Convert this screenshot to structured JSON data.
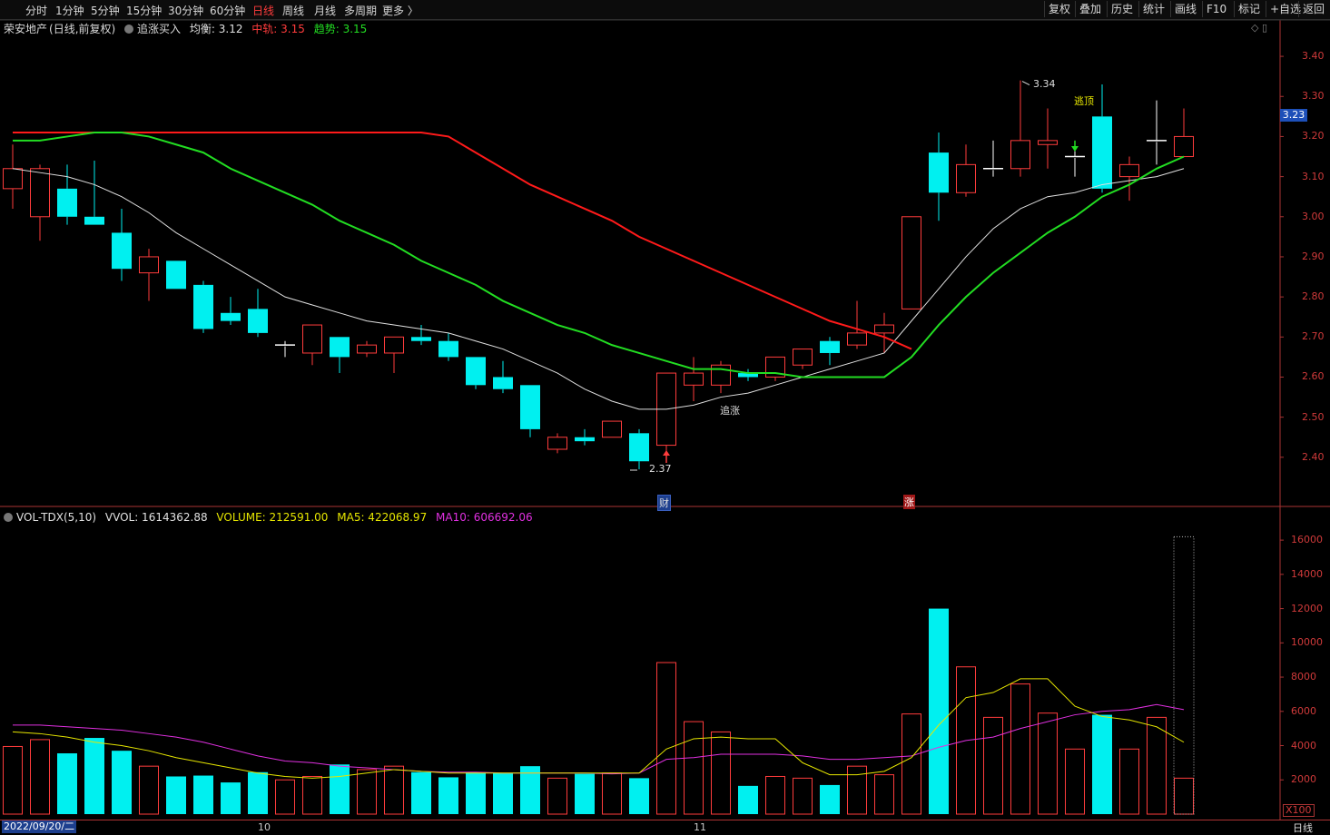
{
  "toolbar": {
    "left_items": [
      "分时",
      "1分钟",
      "5分钟",
      "15分钟",
      "30分钟",
      "60分钟",
      "日线",
      "周线",
      "月线",
      "多周期",
      "更多 〉"
    ],
    "active_index": 6,
    "right_items": [
      "复权",
      "叠加",
      "历史",
      "统计",
      "画线",
      "F10",
      "标记",
      "+自选",
      "返回"
    ]
  },
  "main_header": {
    "stock": "荣安地产",
    "mode": "(日线,前复权)",
    "indicator": "追涨买入",
    "junheng_label": "均衡:",
    "junheng_value": "3.12",
    "zhonggui_label": "中轨:",
    "zhonggui_value": "3.15",
    "qushi_label": "趋势:",
    "qushi_value": "3.15"
  },
  "vol_header": {
    "name": "VOL-TDX(5,10)",
    "vvol": "VVOL: 1614362.88",
    "volume": "VOLUME: 212591.00",
    "ma5": "MA5: 422068.97",
    "ma10": "MA10: 606692.06"
  },
  "current_price": "3.23",
  "bottom": {
    "start_date": "2022/09/20/二",
    "month_10": "10",
    "month_11": "11",
    "period": "日线",
    "x100": "X100"
  },
  "colors": {
    "up": "#ff3c3c",
    "down": "#00f0f0",
    "white_line": "#e0e0e0",
    "green_line": "#22dd22",
    "red_line": "#ff1a1a",
    "ma5": "#e6e600",
    "ma10": "#e030e0"
  },
  "chart_data": {
    "type": "candlestick",
    "price_axis": {
      "min": 2.3,
      "max": 3.45,
      "ticks": [
        "3.40",
        "3.30",
        "3.20",
        "3.10",
        "3.00",
        "2.90",
        "2.80",
        "2.70",
        "2.60",
        "2.50",
        "2.40"
      ]
    },
    "volume_axis": {
      "min": 0,
      "max": 16800,
      "ticks": [
        "16000",
        "14000",
        "12000",
        "10000",
        "8000",
        "6000",
        "4000",
        "2000"
      ]
    },
    "candles": [
      {
        "o": 3.07,
        "h": 3.18,
        "l": 3.02,
        "c": 3.12
      },
      {
        "o": 3.0,
        "h": 3.13,
        "l": 2.94,
        "c": 3.12
      },
      {
        "o": 3.07,
        "h": 3.13,
        "l": 2.98,
        "c": 3.0
      },
      {
        "o": 3.0,
        "h": 3.14,
        "l": 2.98,
        "c": 2.98
      },
      {
        "o": 2.96,
        "h": 3.02,
        "l": 2.84,
        "c": 2.87
      },
      {
        "o": 2.86,
        "h": 2.92,
        "l": 2.79,
        "c": 2.9
      },
      {
        "o": 2.89,
        "h": 2.89,
        "l": 2.82,
        "c": 2.82
      },
      {
        "o": 2.83,
        "h": 2.84,
        "l": 2.71,
        "c": 2.72
      },
      {
        "o": 2.76,
        "h": 2.8,
        "l": 2.73,
        "c": 2.74
      },
      {
        "o": 2.77,
        "h": 2.82,
        "l": 2.7,
        "c": 2.71
      },
      {
        "o": 2.68,
        "h": 2.69,
        "l": 2.65,
        "c": 2.68
      },
      {
        "o": 2.66,
        "h": 2.73,
        "l": 2.63,
        "c": 2.73
      },
      {
        "o": 2.7,
        "h": 2.7,
        "l": 2.61,
        "c": 2.65
      },
      {
        "o": 2.66,
        "h": 2.69,
        "l": 2.65,
        "c": 2.68
      },
      {
        "o": 2.66,
        "h": 2.7,
        "l": 2.61,
        "c": 2.7
      },
      {
        "o": 2.7,
        "h": 2.73,
        "l": 2.68,
        "c": 2.69
      },
      {
        "o": 2.69,
        "h": 2.71,
        "l": 2.64,
        "c": 2.65
      },
      {
        "o": 2.65,
        "h": 2.65,
        "l": 2.57,
        "c": 2.58
      },
      {
        "o": 2.6,
        "h": 2.64,
        "l": 2.56,
        "c": 2.57
      },
      {
        "o": 2.58,
        "h": 2.58,
        "l": 2.45,
        "c": 2.47
      },
      {
        "o": 2.42,
        "h": 2.46,
        "l": 2.41,
        "c": 2.45
      },
      {
        "o": 2.45,
        "h": 2.47,
        "l": 2.43,
        "c": 2.44
      },
      {
        "o": 2.45,
        "h": 2.49,
        "l": 2.45,
        "c": 2.49
      },
      {
        "o": 2.46,
        "h": 2.47,
        "l": 2.37,
        "c": 2.39
      },
      {
        "o": 2.43,
        "h": 2.61,
        "l": 2.41,
        "c": 2.61
      },
      {
        "o": 2.58,
        "h": 2.65,
        "l": 2.54,
        "c": 2.61
      },
      {
        "o": 2.58,
        "h": 2.64,
        "l": 2.56,
        "c": 2.63
      },
      {
        "o": 2.61,
        "h": 2.62,
        "l": 2.59,
        "c": 2.6
      },
      {
        "o": 2.6,
        "h": 2.65,
        "l": 2.59,
        "c": 2.65
      },
      {
        "o": 2.63,
        "h": 2.67,
        "l": 2.62,
        "c": 2.67
      },
      {
        "o": 2.69,
        "h": 2.7,
        "l": 2.63,
        "c": 2.66
      },
      {
        "o": 2.68,
        "h": 2.79,
        "l": 2.67,
        "c": 2.71
      },
      {
        "o": 2.71,
        "h": 2.76,
        "l": 2.66,
        "c": 2.73
      },
      {
        "o": 2.77,
        "h": 3.0,
        "l": 2.77,
        "c": 3.0
      },
      {
        "o": 3.16,
        "h": 3.21,
        "l": 2.99,
        "c": 3.06
      },
      {
        "o": 3.06,
        "h": 3.18,
        "l": 3.05,
        "c": 3.13
      },
      {
        "o": 3.12,
        "h": 3.19,
        "l": 3.1,
        "c": 3.12
      },
      {
        "o": 3.12,
        "h": 3.34,
        "l": 3.1,
        "c": 3.19
      },
      {
        "o": 3.18,
        "h": 3.27,
        "l": 3.12,
        "c": 3.19
      },
      {
        "o": 3.15,
        "h": 3.19,
        "l": 3.1,
        "c": 3.15
      },
      {
        "o": 3.25,
        "h": 3.33,
        "l": 3.06,
        "c": 3.07
      },
      {
        "o": 3.1,
        "h": 3.15,
        "l": 3.04,
        "c": 3.13
      },
      {
        "o": 3.19,
        "h": 3.29,
        "l": 3.13,
        "c": 3.19
      },
      {
        "o": 3.15,
        "h": 3.27,
        "l": 3.15,
        "c": 3.2
      }
    ],
    "volume": [
      3950,
      4350,
      3550,
      4450,
      3700,
      2800,
      2200,
      2250,
      1850,
      2450,
      2000,
      2200,
      2900,
      2600,
      2800,
      2450,
      2150,
      2450,
      2400,
      2800,
      2100,
      2350,
      2400,
      2100,
      8850,
      5400,
      4800,
      1650,
      2200,
      2100,
      1700,
      2800,
      2300,
      5850,
      12000,
      8600,
      5650,
      7600,
      5900,
      3800,
      5800,
      3800,
      5650,
      2100
    ],
    "white_line": [
      3.12,
      3.11,
      3.1,
      3.08,
      3.05,
      3.01,
      2.96,
      2.92,
      2.88,
      2.84,
      2.8,
      2.78,
      2.76,
      2.74,
      2.73,
      2.72,
      2.71,
      2.69,
      2.67,
      2.64,
      2.61,
      2.57,
      2.54,
      2.52,
      2.52,
      2.53,
      2.55,
      2.56,
      2.58,
      2.6,
      2.62,
      2.64,
      2.66,
      2.74,
      2.82,
      2.9,
      2.97,
      3.02,
      3.05,
      3.06,
      3.08,
      3.09,
      3.1,
      3.12
    ],
    "green_line": [
      3.19,
      3.19,
      3.2,
      3.21,
      3.21,
      3.2,
      3.18,
      3.16,
      3.12,
      3.09,
      3.06,
      3.03,
      2.99,
      2.96,
      2.93,
      2.89,
      2.86,
      2.83,
      2.79,
      2.76,
      2.73,
      2.71,
      2.68,
      2.66,
      2.64,
      2.62,
      2.62,
      2.61,
      2.61,
      2.6,
      2.6,
      2.6,
      2.6,
      2.65,
      2.73,
      2.8,
      2.86,
      2.91,
      2.96,
      3.0,
      3.05,
      3.08,
      3.12,
      3.15
    ],
    "red_line": [
      3.21,
      3.21,
      3.21,
      3.21,
      3.21,
      3.21,
      3.21,
      3.21,
      3.21,
      3.21,
      3.21,
      3.21,
      3.21,
      3.21,
      3.21,
      3.21,
      3.2,
      3.16,
      3.12,
      3.08,
      3.05,
      3.02,
      2.99,
      2.95,
      2.92,
      2.89,
      2.86,
      2.83,
      2.8,
      2.77,
      2.74,
      2.72,
      2.7,
      2.67
    ],
    "ma5": [
      4800,
      4700,
      4500,
      4200,
      4000,
      3700,
      3300,
      3000,
      2700,
      2400,
      2200,
      2100,
      2200,
      2400,
      2600,
      2500,
      2400,
      2400,
      2400,
      2400,
      2400,
      2400,
      2400,
      2400,
      3800,
      4400,
      4500,
      4400,
      4400,
      3000,
      2300,
      2300,
      2500,
      3300,
      5200,
      6800,
      7100,
      7900,
      7900,
      6300,
      5700,
      5500,
      5100,
      4200
    ],
    "ma10": [
      5200,
      5200,
      5100,
      5000,
      4900,
      4700,
      4500,
      4200,
      3800,
      3400,
      3100,
      3000,
      2800,
      2700,
      2600,
      2500,
      2450,
      2450,
      2400,
      2400,
      2400,
      2400,
      2350,
      2400,
      3200,
      3300,
      3500,
      3500,
      3500,
      3400,
      3200,
      3200,
      3300,
      3400,
      3900,
      4300,
      4500,
      5000,
      5400,
      5800,
      6000,
      6100,
      6400,
      6100
    ],
    "annotations": {
      "high_label": "3.34",
      "low_label": "2.37",
      "zhuizhang": "追涨",
      "taoding": "逃顶",
      "cai_marker": "财",
      "zhang_marker": "涨"
    }
  }
}
